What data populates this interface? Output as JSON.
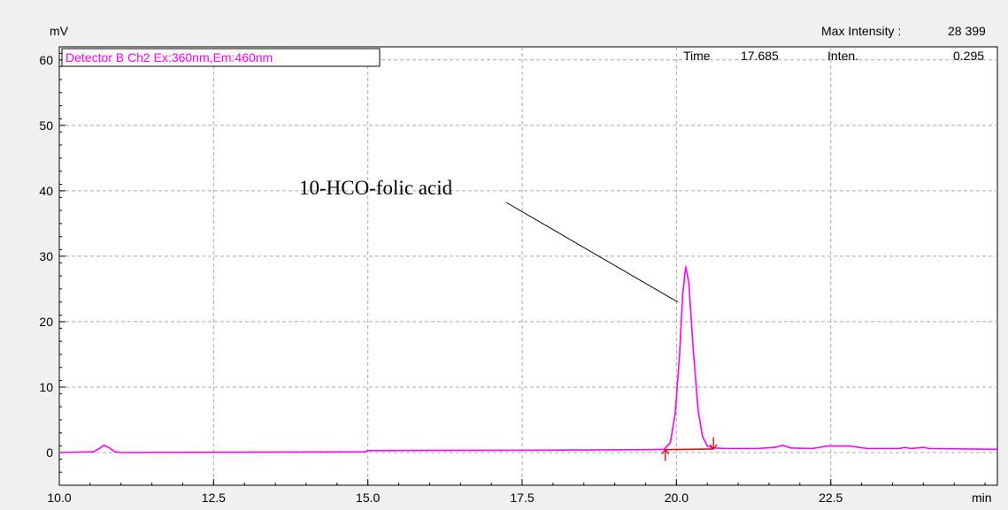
{
  "chart_data": {
    "type": "line",
    "y_unit": "mV",
    "x_unit": "min",
    "header": {
      "max_intensity_label": "Max Intensity :",
      "max_intensity_value": "28 399",
      "time_label": "Time",
      "time_value": "17.685",
      "inten_label": "Inten.",
      "inten_value": "0.295"
    },
    "detector_label": "Detector B Ch2 Ex:360nm,Em:460nm",
    "annotation": {
      "text": "10-HCO-folic acid",
      "points_to": [
        20.02,
        23
      ]
    },
    "xlim": [
      10.0,
      25.2
    ],
    "ylim": [
      -5,
      62
    ],
    "x_ticks": [
      10.0,
      12.5,
      15.0,
      17.5,
      20.0,
      22.5
    ],
    "x_tick_labels": [
      "10.0",
      "12.5",
      "15.0",
      "17.5",
      "20.0",
      "22.5"
    ],
    "y_ticks": [
      0,
      10,
      20,
      30,
      40,
      50,
      60
    ],
    "y_tick_labels": [
      "0",
      "10",
      "20",
      "30",
      "40",
      "50",
      "60"
    ],
    "grid": true,
    "series": [
      {
        "color": "#ff00ff",
        "points": [
          [
            10.0,
            0.0
          ],
          [
            10.55,
            0.1
          ],
          [
            10.65,
            0.6
          ],
          [
            10.72,
            1.1
          ],
          [
            10.8,
            0.8
          ],
          [
            10.9,
            0.1
          ],
          [
            11.0,
            0.0
          ],
          [
            14.95,
            0.1
          ],
          [
            15.0,
            0.3
          ],
          [
            17.5,
            0.35
          ],
          [
            19.5,
            0.45
          ],
          [
            19.8,
            0.5
          ],
          [
            19.9,
            1.5
          ],
          [
            19.98,
            6
          ],
          [
            20.05,
            15
          ],
          [
            20.1,
            24
          ],
          [
            20.15,
            28.4
          ],
          [
            20.2,
            26
          ],
          [
            20.27,
            16
          ],
          [
            20.35,
            6.5
          ],
          [
            20.42,
            2.5
          ],
          [
            20.5,
            1.0
          ],
          [
            20.6,
            0.7
          ],
          [
            20.8,
            0.6
          ],
          [
            21.3,
            0.6
          ],
          [
            21.6,
            0.8
          ],
          [
            21.72,
            1.1
          ],
          [
            21.85,
            0.7
          ],
          [
            22.2,
            0.6
          ],
          [
            22.45,
            1.0
          ],
          [
            22.8,
            1.0
          ],
          [
            23.1,
            0.6
          ],
          [
            23.6,
            0.6
          ],
          [
            23.7,
            0.8
          ],
          [
            23.8,
            0.6
          ],
          [
            24.0,
            0.8
          ],
          [
            24.1,
            0.6
          ],
          [
            25.2,
            0.5
          ]
        ]
      }
    ],
    "integration_baseline": {
      "color": "#e01010",
      "start": [
        19.82,
        0.45
      ],
      "end": [
        20.6,
        0.55
      ]
    }
  }
}
